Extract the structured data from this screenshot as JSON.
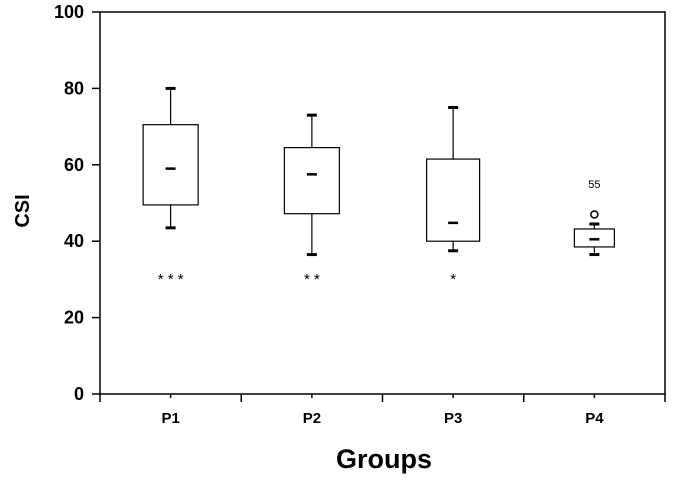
{
  "chart_data": {
    "type": "box",
    "xlabel": "Groups",
    "ylabel": "CSI",
    "ylim": [
      0,
      100
    ],
    "yticks": [
      0,
      20,
      40,
      60,
      80,
      100
    ],
    "ytick_labels": [
      "0",
      "20",
      "40",
      "60",
      "80",
      "100"
    ],
    "categories": [
      "P1",
      "P2",
      "P3",
      "P4"
    ],
    "boxes": [
      {
        "category": "P1",
        "whisker_low": 43.5,
        "q1": 49.5,
        "median": 59,
        "q3": 70.5,
        "whisker_high": 80,
        "significance": "* * *"
      },
      {
        "category": "P2",
        "whisker_low": 36.5,
        "q1": 47.2,
        "median": 57.5,
        "q3": 64.5,
        "whisker_high": 73,
        "significance": "* *"
      },
      {
        "category": "P3",
        "whisker_low": 37.5,
        "q1": 40,
        "median": 44.8,
        "q3": 61.5,
        "whisker_high": 75,
        "significance": "*"
      },
      {
        "category": "P4",
        "whisker_low": 36.5,
        "q1": 38.5,
        "median": 40.5,
        "q3": 43.2,
        "whisker_high": 44.5,
        "significance": ""
      }
    ],
    "outliers": [
      {
        "category": "P4",
        "value": 47,
        "marker": "o",
        "label": "55",
        "label_value": 55
      }
    ],
    "grid": false,
    "legend": "none"
  }
}
